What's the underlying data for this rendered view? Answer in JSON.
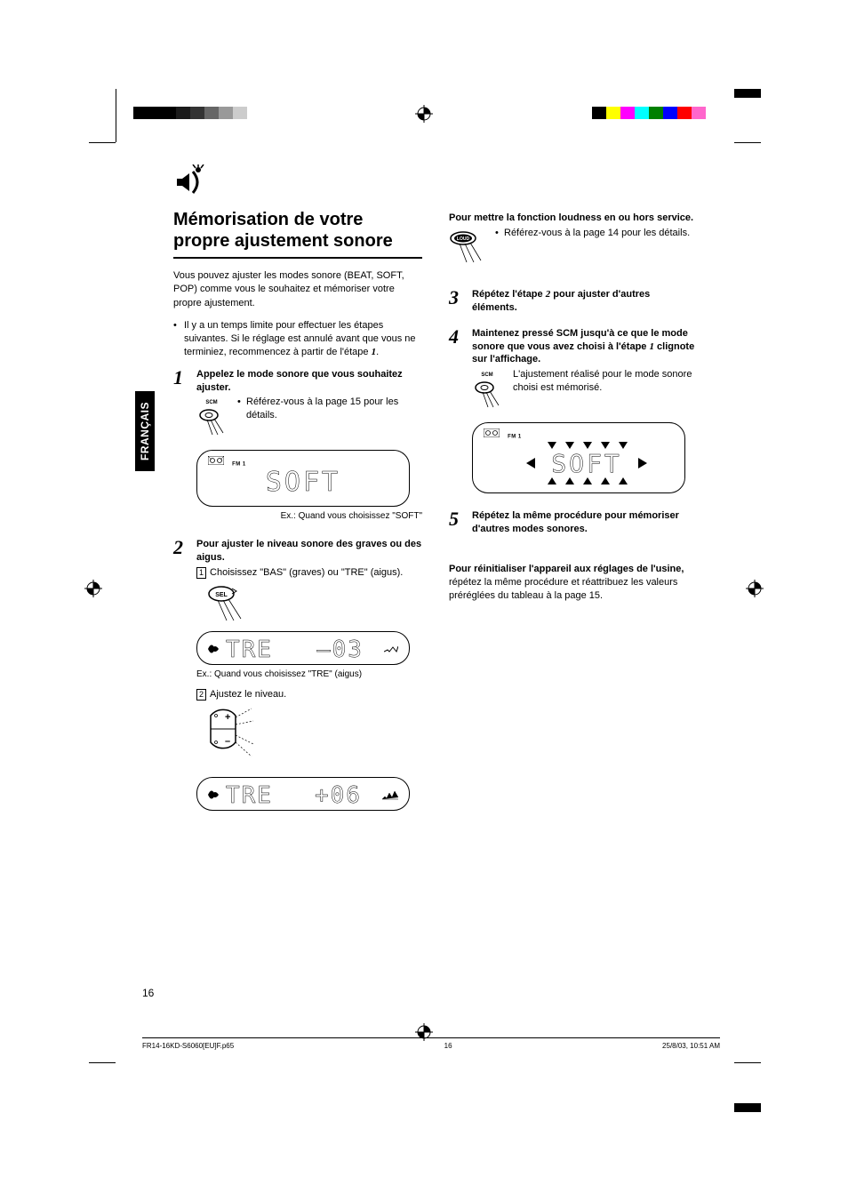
{
  "print_marks": {
    "left_gray_shades": [
      "#000000",
      "#000000",
      "#000000",
      "#1a1a1a",
      "#333333",
      "#666666",
      "#999999",
      "#cccccc",
      "#ffffff"
    ],
    "right_colors": [
      "#000000",
      "#ffff00",
      "#ff00ff",
      "#00ffff",
      "#008000",
      "#0000ff",
      "#ff0000",
      "#ff66cc",
      "#ffffff"
    ]
  },
  "sidebar_label": "FRANÇAIS",
  "title": "Mémorisation de votre propre ajustement sonore",
  "intro": "Vous pouvez ajuster les modes sonore (BEAT, SOFT, POP) comme vous le souhaitez et mémoriser votre propre ajustement.",
  "note": "Il y a un temps limite pour effectuer les étapes suivantes. Si le réglage est annulé avant que vous ne terminiez, recommencez à partir de l'étape",
  "note_step_ref": "1",
  "step1": {
    "title": "Appelez le mode sonore que vous souhaitez ajuster.",
    "btn_label": "SCM",
    "bullet": "Référez-vous à la page 15 pour les détails.",
    "display_band": "FM 1",
    "display_text": "SOFT",
    "caption": "Ex.: Quand vous choisissez \"SOFT\""
  },
  "step2": {
    "title": "Pour ajuster le niveau sonore des graves ou des aigus.",
    "sub1_num": "1",
    "sub1_text": "Choisissez \"BAS\" (graves) ou \"TRE\" (aigus).",
    "btn_label": "SEL",
    "display1_text_left": "TRE",
    "display1_text_right": "–03",
    "caption1": "Ex.: Quand vous choisissez \"TRE\" (aigus)",
    "sub2_num": "2",
    "sub2_text": "Ajustez le niveau.",
    "display2_text_left": "TRE",
    "display2_text_right": "+06"
  },
  "loudness": {
    "title": "Pour mettre la fonction loudness en ou hors service.",
    "btn_label": "LOUD",
    "bullet": "Référez-vous à la page 14 pour les détails."
  },
  "step3": {
    "text_a": "Répétez l'étape",
    "ref": "2",
    "text_b": "pour ajuster d'autres éléments."
  },
  "step4": {
    "text_a": "Maintenez pressé SCM jusqu'à ce que le mode sonore que vous avez choisi à l'étape",
    "ref": "1",
    "text_b": "clignote sur l'affichage.",
    "btn_label": "SCM",
    "result": "L'ajustement réalisé pour le mode sonore choisi est mémorisé.",
    "display_band": "FM 1",
    "display_text": "SOFT"
  },
  "step5": {
    "title": "Répétez la même procédure pour mémoriser d'autres modes sonores."
  },
  "reset": {
    "bold": "Pour réinitialiser l'appareil aux réglages de l'usine,",
    "rest": "répétez la même procédure et réattribuez les valeurs préréglées du tableau à la page 15."
  },
  "page_number": "16",
  "footer": {
    "file": "FR14-16KD-S6060[EU]F.p65",
    "page": "16",
    "date": "25/8/03, 10:51 AM"
  }
}
